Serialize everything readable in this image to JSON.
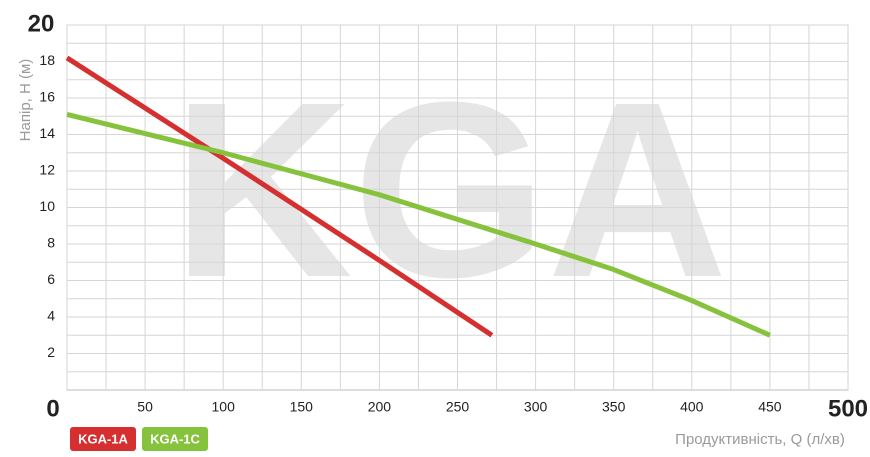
{
  "chart_data": {
    "type": "line",
    "watermark": "KGA",
    "x_label": "Продуктивність, Q (л/хв)",
    "y_label": "Напір, Н (м)",
    "xlim": [
      0,
      500
    ],
    "ylim": [
      0,
      20
    ],
    "xticks": [
      0,
      50,
      100,
      150,
      200,
      250,
      300,
      350,
      400,
      450,
      500
    ],
    "yticks": [
      2,
      4,
      6,
      8,
      10,
      12,
      14,
      16,
      18,
      20
    ],
    "grid": true,
    "legend": "bottom-left",
    "series": [
      {
        "name": "KGA-1A",
        "color": "#d62f2f",
        "x": [
          0,
          100,
          200,
          272
        ],
        "values": [
          18.2,
          12.7,
          7.1,
          3
        ]
      },
      {
        "name": "KGA-1C",
        "color": "#86c23c",
        "x": [
          0,
          100,
          200,
          300,
          350,
          400,
          450
        ],
        "values": [
          15.1,
          13,
          10.7,
          8,
          6.6,
          4.9,
          3
        ]
      }
    ]
  }
}
